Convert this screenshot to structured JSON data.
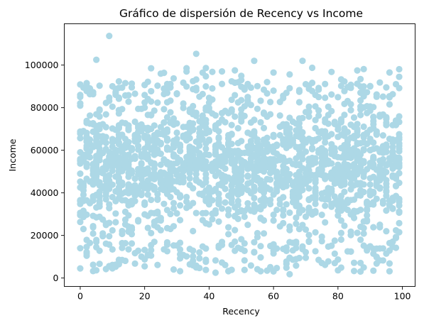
{
  "chart_data": {
    "type": "scatter",
    "title": "Gráfico de dispersión de Recency vs Income",
    "xlabel": "Recency",
    "ylabel": "Income",
    "xlim": [
      -4.95,
      103.95
    ],
    "ylim": [
      -3950,
      119400
    ],
    "xticks": [
      0,
      20,
      40,
      60,
      80,
      100
    ],
    "xtick_labels": [
      "0",
      "20",
      "40",
      "60",
      "80",
      "100"
    ],
    "yticks": [
      0,
      20000,
      40000,
      60000,
      80000,
      100000
    ],
    "ytick_labels": [
      "0",
      "20000",
      "40000",
      "60000",
      "80000",
      "100000"
    ],
    "marker_color": "#add8e6",
    "grid": false,
    "legend": "none",
    "point_count": 2100,
    "points_sampled": "x = 0..99 (integer days), y ≈ 3,000–113,000 spread roughly uniformly, densest 20,000–80,000",
    "notable_points": [
      {
        "x": 9,
        "y": 113700
      },
      {
        "x": 36,
        "y": 105300
      },
      {
        "x": 5,
        "y": 102500
      },
      {
        "x": 54,
        "y": 102000
      },
      {
        "x": 69,
        "y": 102000
      },
      {
        "x": 22,
        "y": 98500
      },
      {
        "x": 60,
        "y": 96500
      },
      {
        "x": 78,
        "y": 96800
      },
      {
        "x": 99,
        "y": 94500
      },
      {
        "x": 0,
        "y": 4500
      },
      {
        "x": 42,
        "y": 2500
      },
      {
        "x": 65,
        "y": 1800
      },
      {
        "x": 56,
        "y": 3200
      },
      {
        "x": 29,
        "y": 4000
      },
      {
        "x": 20,
        "y": 5500
      }
    ]
  }
}
